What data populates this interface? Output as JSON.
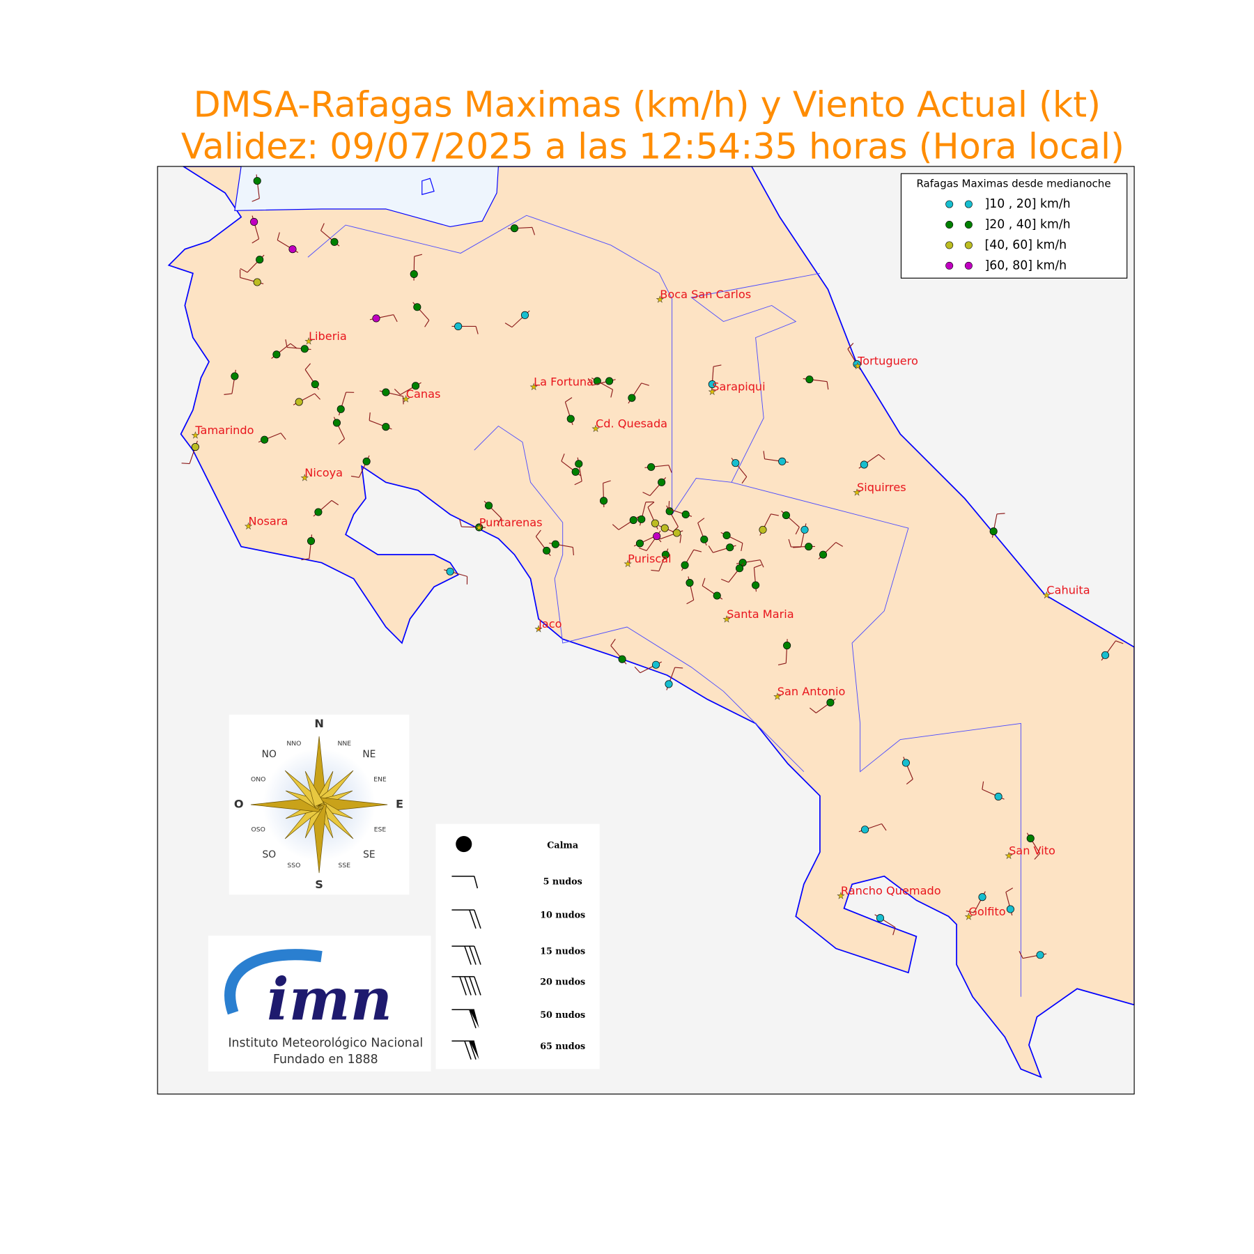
{
  "header": {
    "title_line1": "DMSA-Rafagas Maximas (km/h) y Viento Actual (kt)",
    "title_line2": "Validez: 09/07/2025 a las 12:54:35 horas (Hora local)"
  },
  "legend": {
    "title": "Rafagas Maximas desde medianoche",
    "entries": [
      {
        "label": "]10 , 20] km/h",
        "color": "#17becf"
      },
      {
        "label": "]20 , 40] km/h",
        "color": "#008000"
      },
      {
        "label": "[40, 60] km/h",
        "color": "#bcbd22"
      },
      {
        "label": "]60, 80] km/h",
        "color": "#c000c0"
      }
    ]
  },
  "cities": [
    "Boca San Carlos",
    "Liberia",
    "Tortuguero",
    "La Fortuna",
    "Sarapiqui",
    "Canas",
    "Cd. Quesada",
    "Tamarindo",
    "Siquirres",
    "Nicoya",
    "Nosara",
    "Puntarenas",
    "Puriscal",
    "Cahuita",
    "Santa Maria",
    "Jaco",
    "San Antonio",
    "San Vito",
    "Rancho Quemado",
    "Golfito"
  ],
  "compass": [
    "N",
    "NNE",
    "NE",
    "ENE",
    "E",
    "ESE",
    "SE",
    "SSE",
    "S",
    "SSO",
    "SO",
    "OSO",
    "O",
    "ONO",
    "NO",
    "NNO"
  ],
  "barb_legend": [
    "Calma",
    "5 nudos",
    "10 nudos",
    "15 nudos",
    "20 nudos",
    "50 nudos",
    "65 nudos"
  ],
  "logo": {
    "mark": "imn",
    "name": "Instituto Meteorológico Nacional",
    "founded": "Fundado en 1888"
  }
}
